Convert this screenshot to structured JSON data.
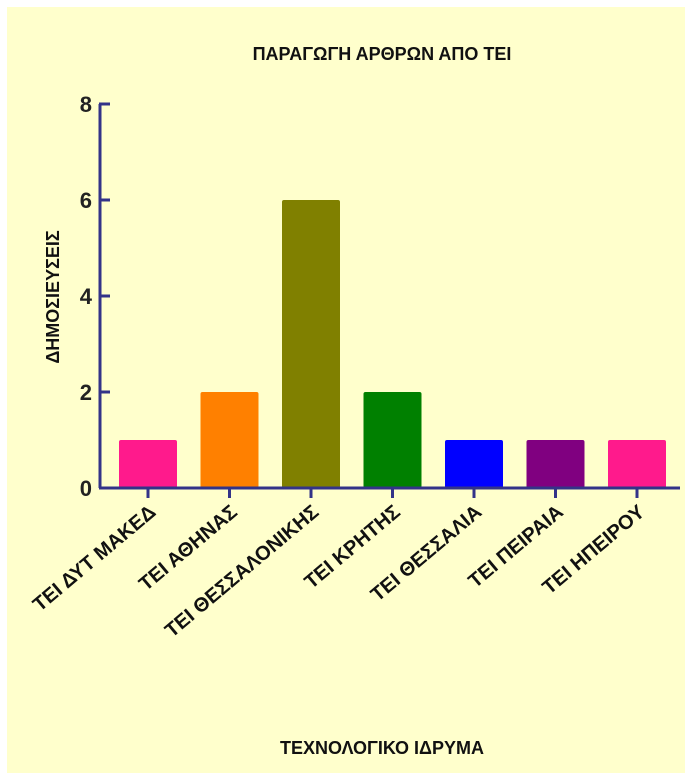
{
  "chart_data": {
    "type": "bar",
    "title": "ΠΑΡΑΓΩΓΗ ΑΡΘΡΩΝ ΑΠΟ ΤΕΙ",
    "xlabel": "ΤΕΧΝΟΛΟΓΙΚΟ ΙΔΡΥΜΑ",
    "ylabel": "ΔΗΜΟΣΙΕΥΣΕΙΣ",
    "categories": [
      "ΤΕΙ ΔΥΤ ΜΑΚΕΔ",
      "ΤΕΙ ΑΘΗΝΑΣ",
      "ΤΕΙ ΘΕΣΣΑΛΟΝΙΚΗΣ",
      "ΤΕΙ ΚΡΗΤΗΣ",
      "ΤΕΙ ΘΕΣΣΑΛΙΑ",
      "ΤΕΙ ΠΕΙΡΑΙΑ",
      "ΤΕΙ ΗΠΕΙΡΟΥ"
    ],
    "values": [
      1,
      2,
      6,
      2,
      1,
      1,
      1
    ],
    "colors": [
      "#ff1a8c",
      "#ff8000",
      "#808000",
      "#008000",
      "#0000ff",
      "#800080",
      "#ff1a8c"
    ],
    "ylim": [
      0,
      8
    ],
    "yticks": [
      "0",
      "2",
      "4",
      "6",
      "8"
    ],
    "grid": false,
    "legend": "none",
    "background": "#ffffcc",
    "axis_color": "#333388"
  }
}
